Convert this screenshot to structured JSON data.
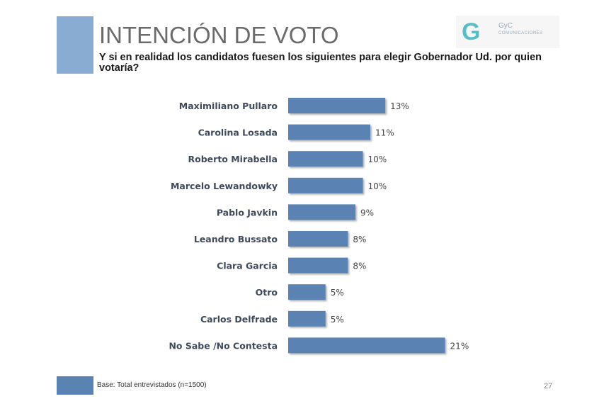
{
  "title": "INTENCIÓN DE VOTO",
  "subtitle": "Y si en realidad los candidatos fuesen los siguientes para elegir Gobernador Ud. por quien votaría?",
  "logo": {
    "name": "GyC",
    "tagline": "COMUNICACIONES"
  },
  "footnote": "Base: Total entrevistados (n=1500)",
  "page_number": "27",
  "colors": {
    "bar": "#5a83b3",
    "accent": "#88acd2"
  },
  "chart_data": {
    "type": "bar",
    "orientation": "horizontal",
    "categories": [
      "Maximiliano Pullaro",
      "Carolina Losada",
      "Roberto Mirabella",
      "Marcelo Lewandowky",
      "Pablo Javkin",
      "Leandro Bussato",
      "Clara Garcia",
      "Otro",
      "Carlos Delfrade",
      "No Sabe /No Contesta"
    ],
    "values": [
      13,
      11,
      10,
      10,
      9,
      8,
      8,
      5,
      5,
      21
    ],
    "labels": [
      "13%",
      "11%",
      "10%",
      "10%",
      "9%",
      "8%",
      "8%",
      "5%",
      "5%",
      "21%"
    ],
    "unit": "%",
    "grid": false,
    "legend": "none"
  }
}
